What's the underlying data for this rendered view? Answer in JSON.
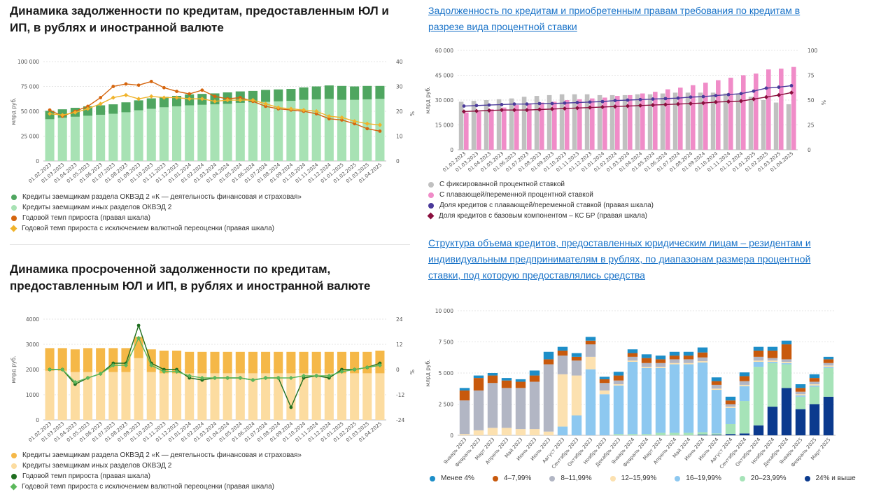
{
  "titles": {
    "c1": "Динамика задолженности по кредитам, предоставленным ЮЛ и ИП, в рублях и иностранной валюте",
    "c2": "Задолженность по кредитам и приобретенным правам требования по кредитам в разрезе вида процентной ставки",
    "c3": "Динамика просроченной задолженности по кредитам, предоставленным ЮЛ и ИП, в рублях и иностранной валюте",
    "c4": "Структура объема кредитов, предоставленных юридическим лицам – резидентам и индивидуальным предпринимателям в рублях, по диапазонам размера процентной ставки, под которую предоставлялись средства"
  },
  "chart_data": [
    {
      "id": "c1",
      "type": "bar",
      "stacked": true,
      "ylabel": "млрд руб.",
      "y2label": "%",
      "ylim": [
        0,
        100000
      ],
      "y2lim": [
        0,
        40
      ],
      "yticks": [
        "0",
        "25 000",
        "50 000",
        "75 000",
        "100 000"
      ],
      "y2ticks": [
        "0",
        "10",
        "20",
        "30",
        "40"
      ],
      "categories": [
        "01.02.2023",
        "01.03.2023",
        "01.04.2023",
        "01.05.2023",
        "01.06.2023",
        "01.07.2023",
        "01.08.2023",
        "01.09.2023",
        "01.10.2023",
        "01.11.2023",
        "01.12.2023",
        "01.01.2024",
        "01.02.2024",
        "01.03.2024",
        "01.04.2024",
        "01.05.2024",
        "01.06.2024",
        "01.07.2024",
        "01.08.2024",
        "01.09.2024",
        "01.10.2024",
        "01.11.2024",
        "01.12.2024",
        "01.01.2025",
        "01.02.2025",
        "01.03.2025",
        "01.04.2025"
      ],
      "series": [
        {
          "name": "Кредиты заемщикам иных разделов ОКВЭД 2",
          "color": "#a8e2b4",
          "axis": "left",
          "values": [
            42000,
            43500,
            44500,
            45500,
            46500,
            47500,
            49000,
            51000,
            52500,
            54000,
            55000,
            56000,
            56500,
            57000,
            57500,
            58500,
            59000,
            59500,
            60000,
            60500,
            61500,
            62000,
            62500,
            61500,
            61500,
            62000,
            62500
          ]
        },
        {
          "name": "Кредиты заемщикам раздела ОКВЭД 2 «К — деятельность финансовая и страховая»",
          "color": "#4fa660",
          "axis": "left",
          "values": [
            8500,
            8500,
            9000,
            9500,
            9500,
            9500,
            10000,
            10000,
            10500,
            10500,
            10500,
            11000,
            11000,
            11000,
            11500,
            11500,
            11500,
            12000,
            12000,
            12000,
            12500,
            13000,
            13500,
            14000,
            13500,
            13500,
            13000
          ]
        },
        {
          "name": "Годовой темп прироста (правая шкала)",
          "color": "#d5650e",
          "axis": "right",
          "kind": "line",
          "values": [
            20.5,
            18,
            20,
            22,
            25.5,
            30,
            31,
            30.5,
            32,
            29.5,
            28,
            27,
            28.5,
            26,
            25,
            25.5,
            24,
            22,
            21,
            20.5,
            20,
            19,
            17,
            16.5,
            15,
            13,
            12
          ]
        },
        {
          "name": "Годовой темп прироста с исключением валютной переоценки (правая шкала)",
          "color": "#f0b32b",
          "axis": "right",
          "kind": "line",
          "values": [
            19,
            18.5,
            19.5,
            21,
            23,
            25.5,
            26.5,
            25,
            26,
            25.5,
            25.5,
            25,
            25,
            24,
            24.5,
            24.5,
            24.5,
            23,
            21.5,
            21,
            20.5,
            20,
            18,
            17.5,
            16,
            15,
            14.5
          ]
        }
      ]
    },
    {
      "id": "c2",
      "type": "bar",
      "ylabel": "млрд руб.",
      "y2label": "%",
      "ylim": [
        0,
        60000
      ],
      "y2lim": [
        0,
        100
      ],
      "yticks": [
        "0",
        "15 000",
        "30 000",
        "45 000",
        "60 000"
      ],
      "y2ticks": [
        "0",
        "25",
        "50",
        "75",
        "100"
      ],
      "categories": [
        "01.02.2023",
        "01.03.2023",
        "01.04.2023",
        "01.05.2023",
        "01.06.2023",
        "01.07.2023",
        "01.08.2023",
        "01.09.2023",
        "01.10.2023",
        "01.11.2023",
        "01.12.2023",
        "01.01.2024",
        "01.02.2024",
        "01.03.2024",
        "01.04.2024",
        "01.05.2024",
        "01.06.2024",
        "01.07.2024",
        "01.08.2024",
        "01.09.2024",
        "01.10.2024",
        "01.11.2024",
        "01.12.2024",
        "01.01.2025",
        "01.02.2025",
        "01.03.2025",
        "01.04.2025"
      ],
      "series": [
        {
          "name": "С фиксированной процентной ставкой",
          "color": "#c0c0c0",
          "axis": "left",
          "values": [
            29000,
            29500,
            30000,
            30500,
            31000,
            32000,
            32500,
            33000,
            33500,
            33500,
            33500,
            33000,
            33000,
            33000,
            33500,
            33500,
            34000,
            34500,
            34500,
            34500,
            34500,
            34000,
            33500,
            32000,
            30000,
            28500,
            27500
          ]
        },
        {
          "name": "С плавающей/переменной процентной ставкой",
          "color": "#f08cc8",
          "axis": "left",
          "values": [
            22500,
            23000,
            24500,
            25500,
            27000,
            28000,
            28500,
            29000,
            30000,
            30500,
            31000,
            31500,
            32500,
            33000,
            34000,
            35000,
            36500,
            37500,
            39000,
            40500,
            42000,
            43500,
            45000,
            46000,
            48500,
            49000,
            50000
          ]
        },
        {
          "name": "Доля кредитов с плавающей/переменной ставкой (правая шкала)",
          "color": "#4a3a9a",
          "axis": "right",
          "kind": "line",
          "values": [
            44,
            44.5,
            45,
            45.5,
            46,
            46,
            46.5,
            46.5,
            47,
            47.5,
            48,
            48.5,
            49.5,
            50,
            50.5,
            51,
            51.5,
            52,
            53,
            53.5,
            54.5,
            55.5,
            56.5,
            59,
            62,
            63,
            64.5
          ]
        },
        {
          "name": "Доля кредитов с базовым компонентом – КС БР (правая шкала)",
          "color": "#8a0f3e",
          "axis": "right",
          "kind": "line",
          "values": [
            38.5,
            39,
            39.5,
            40,
            40,
            40,
            40.5,
            41,
            41.5,
            42,
            42.5,
            43,
            43.5,
            44,
            44.5,
            45,
            45.5,
            46,
            46.5,
            47,
            48,
            48.5,
            49,
            51,
            53,
            55,
            57.5
          ]
        }
      ]
    },
    {
      "id": "c3",
      "type": "bar",
      "stacked": true,
      "ylabel": "млрд руб.",
      "y2label": "%",
      "ylim": [
        0,
        4000
      ],
      "y2lim": [
        -24,
        24
      ],
      "yticks": [
        "0",
        "1000",
        "2000",
        "3000",
        "4000"
      ],
      "y2ticks": [
        "-24",
        "-12",
        "0",
        "12",
        "24"
      ],
      "categories": [
        "01.02.2023",
        "01.03.2023",
        "01.04.2023",
        "01.05.2023",
        "01.06.2023",
        "01.07.2023",
        "01.08.2023",
        "01.09.2023",
        "01.10.2023",
        "01.11.2023",
        "01.12.2023",
        "01.01.2024",
        "01.02.2024",
        "01.03.2024",
        "01.04.2024",
        "01.05.2024",
        "01.06.2024",
        "01.07.2024",
        "01.08.2024",
        "01.09.2024",
        "01.10.2024",
        "01.11.2024",
        "01.12.2024",
        "01.01.2025",
        "01.02.2025",
        "01.03.2025",
        "01.04.2025"
      ],
      "series": [
        {
          "name": "Кредиты заемщикам иных разделов ОКВЭД 2",
          "color": "#fcdca0",
          "axis": "left",
          "values": [
            1950,
            1950,
            1900,
            1900,
            1900,
            1900,
            1900,
            2450,
            1900,
            1850,
            1850,
            1850,
            1850,
            1850,
            1850,
            1850,
            1850,
            1850,
            1850,
            1850,
            1850,
            1850,
            1850,
            1850,
            1850,
            1850,
            1850
          ]
        },
        {
          "name": "Кредиты заемщикам раздела ОКВЭД 2 «К — деятельность финансовая и страховая»",
          "color": "#f5b848",
          "axis": "left",
          "values": [
            900,
            900,
            900,
            950,
            950,
            950,
            950,
            850,
            900,
            900,
            900,
            850,
            850,
            850,
            850,
            850,
            850,
            850,
            850,
            850,
            850,
            850,
            850,
            850,
            850,
            850,
            900
          ]
        },
        {
          "name": "Годовой темп прироста (правая шкала)",
          "color": "#1f6e1f",
          "axis": "right",
          "kind": "line",
          "values": [
            0,
            0,
            -7,
            -4,
            -2,
            3,
            3,
            21,
            3,
            0,
            0,
            -4,
            -5,
            -4,
            -4,
            -4,
            -5,
            -4,
            -4,
            -18,
            -4,
            -3,
            -4,
            0,
            0,
            1,
            3
          ]
        },
        {
          "name": "Годовой темп прироста с исключением валютной переоценки (правая шкала)",
          "color": "#5cb85c",
          "axis": "right",
          "kind": "line",
          "values": [
            0,
            0,
            -6,
            -4,
            -2,
            2,
            2,
            15,
            2,
            -1,
            -1,
            -3,
            -4,
            -4,
            -4,
            -4,
            -5,
            -4,
            -4,
            -4,
            -3,
            -3,
            -3,
            -1,
            0,
            1,
            2
          ]
        }
      ]
    },
    {
      "id": "c4",
      "type": "bar",
      "stacked": true,
      "ylabel": "млрд руб.",
      "ylim": [
        0,
        10000
      ],
      "yticks": [
        "0",
        "2 500",
        "5 000",
        "7 500",
        "10 000"
      ],
      "categories": [
        "Январь 2023",
        "Февраль 2023",
        "Март 2023",
        "Апрель 2023",
        "Май 2023",
        "Июнь 2023",
        "Июль 2023",
        "Август 2023",
        "Сентябрь 2023",
        "Октябрь 2023",
        "Ноябрь 2023",
        "Декабрь 2023",
        "Январь 2024",
        "Февраль 2024",
        "Март 2024",
        "Апрель 2024",
        "Май 2024",
        "Июнь 2024",
        "Июль 2024",
        "Август 2024",
        "Сентябрь 2024",
        "Октябрь 2024",
        "Ноябрь 2024",
        "Декабрь 2024",
        "Январь 2025",
        "Февраль 2025",
        "Март 2025"
      ],
      "series": [
        {
          "name": "24% и выше",
          "color": "#0b3a8e",
          "values": [
            0,
            0,
            0,
            0,
            0,
            0,
            0,
            0,
            0,
            0,
            0,
            0,
            0,
            0,
            0,
            0,
            0,
            50,
            50,
            100,
            150,
            800,
            2300,
            3800,
            2100,
            2500,
            3100
          ]
        },
        {
          "name": "20–23,99%",
          "color": "#a6e3b8",
          "values": [
            0,
            0,
            0,
            0,
            0,
            0,
            0,
            0,
            0,
            0,
            0,
            100,
            100,
            100,
            200,
            200,
            200,
            200,
            100,
            800,
            2600,
            4700,
            3500,
            1900,
            1000,
            1400,
            2300
          ]
        },
        {
          "name": "16–19,99%",
          "color": "#8dc8f0",
          "values": [
            0,
            0,
            0,
            0,
            0,
            0,
            0,
            700,
            1600,
            5300,
            3300,
            3900,
            5800,
            5300,
            5200,
            5500,
            5500,
            5600,
            3500,
            1300,
            1200,
            400,
            100,
            100,
            100,
            100,
            100
          ]
        },
        {
          "name": "12–15,99%",
          "color": "#fce1b0",
          "values": [
            100,
            400,
            600,
            600,
            500,
            500,
            300,
            4200,
            3200,
            1000,
            300,
            100,
            100,
            100,
            100,
            100,
            100,
            100,
            100,
            100,
            100,
            100,
            100,
            100,
            100,
            100,
            100
          ]
        },
        {
          "name": "8–11,99%",
          "color": "#b2b6c4",
          "values": [
            2700,
            3200,
            3600,
            3200,
            3300,
            3800,
            5400,
            1500,
            1200,
            1000,
            600,
            300,
            300,
            300,
            300,
            300,
            300,
            300,
            300,
            200,
            300,
            300,
            200,
            200,
            200,
            200,
            200
          ]
        },
        {
          "name": "4–7,99%",
          "color": "#c8590c",
          "values": [
            800,
            1000,
            600,
            600,
            500,
            500,
            400,
            400,
            300,
            300,
            300,
            400,
            300,
            400,
            300,
            300,
            300,
            400,
            300,
            300,
            400,
            500,
            600,
            1200,
            300,
            300,
            300
          ]
        },
        {
          "name": "Менее 4%",
          "color": "#1d8ec8",
          "values": [
            200,
            200,
            200,
            200,
            200,
            400,
            600,
            300,
            300,
            300,
            200,
            300,
            300,
            300,
            300,
            300,
            300,
            400,
            300,
            300,
            300,
            300,
            300,
            300,
            300,
            300,
            200
          ]
        }
      ]
    }
  ],
  "legends": {
    "c1": [
      "Кредиты заемщикам раздела ОКВЭД 2 «К — деятельность финансовая и страховая»",
      "Кредиты заемщикам иных разделов ОКВЭД 2",
      "Годовой темп прироста (правая шкала)",
      "Годовой темп прироста с исключением валютной переоценки (правая шкала)"
    ],
    "c2": [
      "С фиксированной процентной ставкой",
      "С плавающей/переменной процентной ставкой",
      "Доля кредитов с плавающей/переменной ставкой (правая шкала)",
      "Доля кредитов с базовым компонентом – КС БР (правая шкала)"
    ],
    "c3": [
      "Кредиты заемщикам раздела ОКВЭД 2 «К — деятельность финансовая и страховая»",
      "Кредиты заемщикам иных разделов ОКВЭД 2",
      "Годовой темп прироста (правая шкала)",
      "Годовой темп прироста с исключением валютной переоценки (правая шкала)"
    ],
    "c4": [
      "Менее 4%",
      "4–7,99%",
      "8–11,99%",
      "12–15,99%",
      "16–19,99%",
      "20–23,99%",
      "24% и выше"
    ]
  },
  "legend_colors": {
    "c1": [
      "#4fa660",
      "#a8e2b4",
      "#d5650e",
      "#f0b32b"
    ],
    "c2": [
      "#c0c0c0",
      "#f08cc8",
      "#4a3a9a",
      "#8a0f3e"
    ],
    "c3": [
      "#f5b848",
      "#fcdca0",
      "#1f6e1f",
      "#5cb85c"
    ],
    "c4": [
      "#1d8ec8",
      "#c8590c",
      "#b2b6c4",
      "#fce1b0",
      "#8dc8f0",
      "#a6e3b8",
      "#0b3a8e"
    ]
  }
}
